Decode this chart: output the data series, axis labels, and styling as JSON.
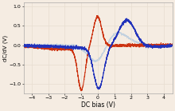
{
  "xlabel": "DC bias (V)",
  "ylabel": "dC/dV (V)",
  "xlim": [
    -4.5,
    4.5
  ],
  "ylim": [
    -1.25,
    1.1
  ],
  "xticks": [
    -4,
    -3,
    -2,
    -1,
    0,
    1,
    2,
    3,
    4
  ],
  "yticks": [
    -1,
    -0.5,
    0,
    0.5,
    1
  ],
  "background_color": "#f5ece2",
  "grid_color": "#e8ddd0",
  "red_color": "#cc3311",
  "blue_color": "#2233bb",
  "light_blue_color": "#99bbdd",
  "xlabel_fontsize": 5.5,
  "ylabel_fontsize": 5.0,
  "tick_fontsize": 4.5
}
